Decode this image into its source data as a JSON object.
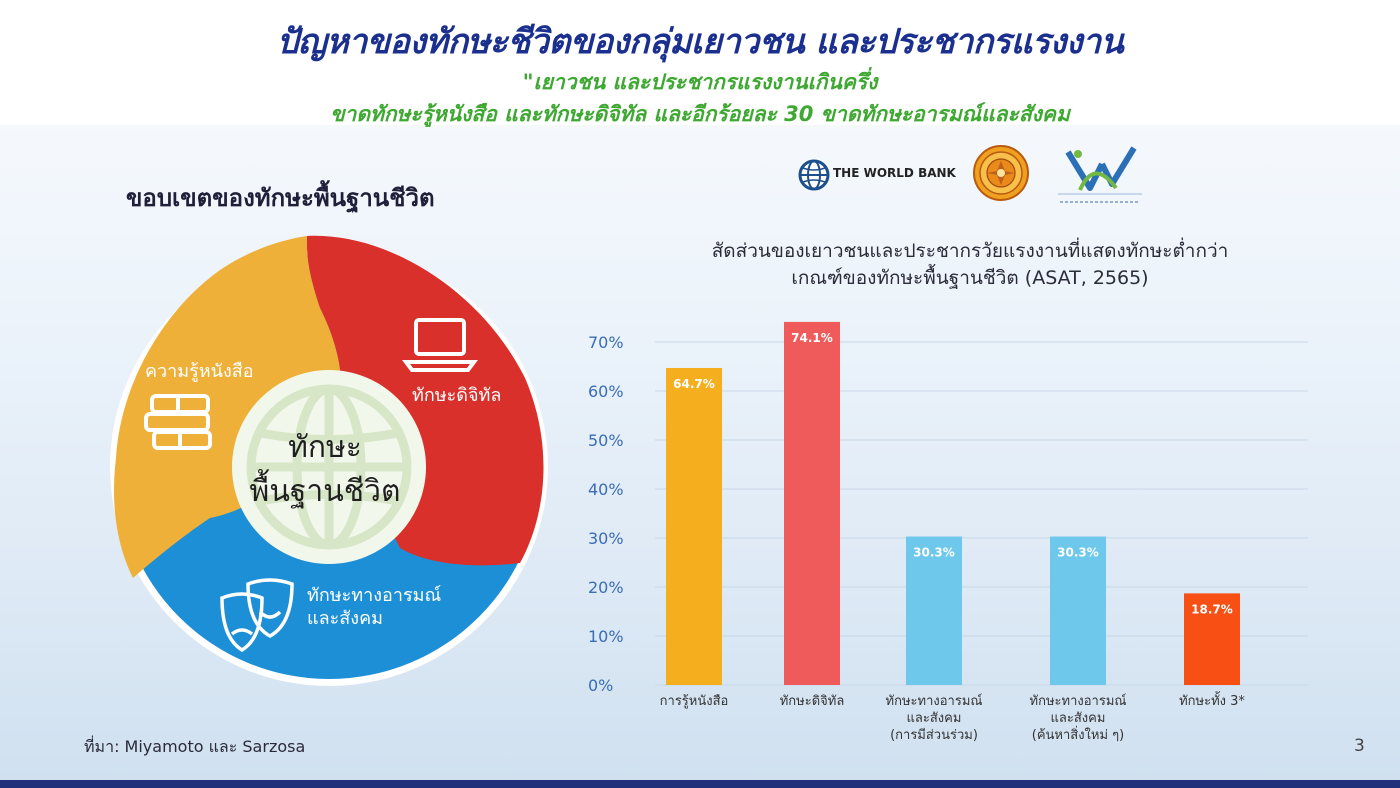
{
  "slide": {
    "title": "ปัญหาของทักษะชีวิตของกลุ่มเยาวชน และประชากรแรงงาน",
    "subtitle_line1": "\"เยาวชน และประชากรแรงงานเกินครึ่ง",
    "subtitle_line2": "ขาดทักษะรู้หนังสือ และทักษะดิจิทัล และอีกร้อยละ 30 ขาดทักษะอารมณ์และสังคม",
    "left_heading": "ขอบเขตของทักษะพื้นฐานชีวิต",
    "source": "ที่มา: Miyamoto และ Sarzosa",
    "page_number": "3"
  },
  "logos": {
    "world_bank": "THE WORLD BANK",
    "world_bank_icon": "globe-icon",
    "seal_icon": "seal-icon",
    "nso_icon": "nso-logo-icon"
  },
  "wheel": {
    "center_line1": "ทักษะ",
    "center_line2": "พื้นฐานชีวิต",
    "segments": [
      {
        "label": "ความรู้หนังสือ",
        "color": "#eeb038",
        "icon": "books-icon"
      },
      {
        "label": "ทักษะดิจิทัล",
        "color": "#d9302b",
        "icon": "laptop-icon"
      },
      {
        "label_line1": "ทักษะทางอารมณ์",
        "label_line2": "และสังคม",
        "color": "#1d8fd6",
        "icon": "theater-masks-icon"
      }
    ]
  },
  "chart_data": {
    "type": "bar",
    "title_line1": "สัดส่วนของเยาวชนและประชากรวัยแรงงานที่แสดงทักษะต่ำกว่า",
    "title_line2": "เกณฑ์ของทักษะพื้นฐานชีวิต (ASAT, 2565)",
    "categories": [
      [
        "การรู้หนังสือ"
      ],
      [
        "ทักษะดิจิทัล"
      ],
      [
        "ทักษะทางอารมณ์",
        "และสังคม",
        "(การมีส่วนร่วม)"
      ],
      [
        "ทักษะทางอารมณ์",
        "และสังคม",
        "(ค้นหาสิ่งใหม่ ๆ)"
      ],
      [
        "ทักษะทั้ง 3*"
      ]
    ],
    "values": [
      64.7,
      74.1,
      30.3,
      30.3,
      18.7
    ],
    "value_labels": [
      "64.7%",
      "74.1%",
      "30.3%",
      "30.3%",
      "18.7%"
    ],
    "colors": [
      "#f5ae1e",
      "#ef5a5a",
      "#6ec8ec",
      "#6ec8ec",
      "#f74f14"
    ],
    "y_ticks": [
      "0%",
      "10%",
      "20%",
      "30%",
      "40%",
      "50%",
      "60%",
      "70%"
    ],
    "ylim": [
      0,
      70
    ],
    "grid": true,
    "xlabel": "",
    "ylabel": ""
  }
}
